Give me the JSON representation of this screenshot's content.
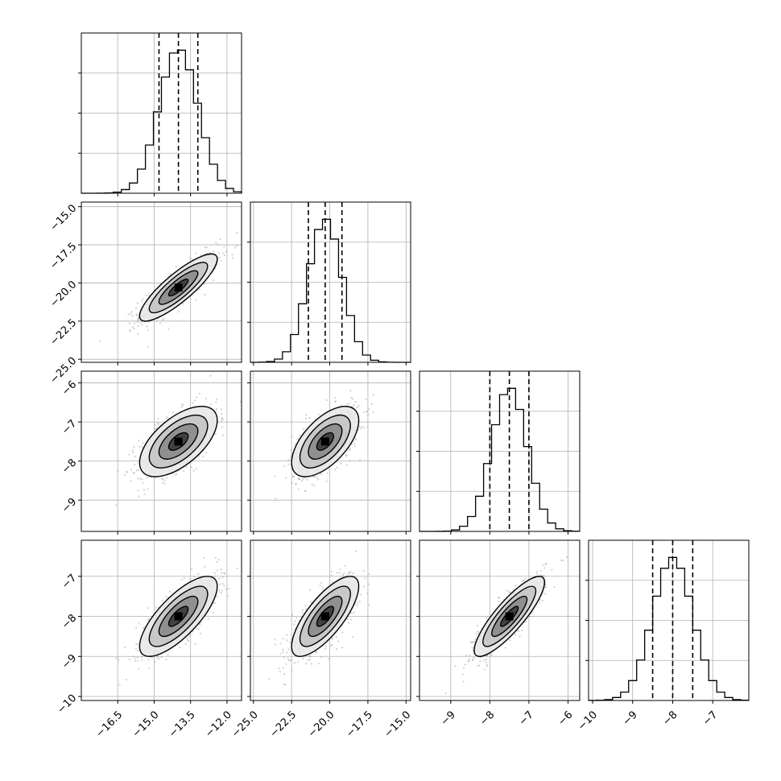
{
  "chart_data": {
    "type": "scatter",
    "subtype": "corner-plot",
    "n_params": 4,
    "title": "",
    "grid": true,
    "colors": {
      "axes": "#000000",
      "grid": "#b0b0b0",
      "hist": "#000000",
      "points": "#9a9a9a",
      "background": "#ffffff"
    },
    "params": [
      {
        "mean": -14.0,
        "sd": 0.8,
        "q16": -14.8,
        "q50": -14.0,
        "q84": -13.2,
        "range": [
          -18.0,
          -11.4
        ],
        "ticks": [
          -16.5,
          -15.0,
          -13.5,
          -12.0
        ],
        "tick_labels": [
          "−16.5",
          "−15.0",
          "−13.5",
          "−12.0"
        ]
      },
      {
        "mean": -20.3,
        "sd": 1.1,
        "q16": -21.4,
        "q50": -20.3,
        "q84": -19.2,
        "range": [
          -25.2,
          -14.7
        ],
        "ticks": [
          -25.0,
          -22.5,
          -20.0,
          -17.5,
          -15.0
        ],
        "tick_labels": [
          "−25.0",
          "−22.5",
          "−20.0",
          "−17.5",
          "−15.0"
        ]
      },
      {
        "mean": -7.5,
        "sd": 0.45,
        "q16": -8.0,
        "q50": -7.5,
        "q84": -7.0,
        "range": [
          -9.8,
          -5.7
        ],
        "ticks": [
          -9,
          -8,
          -7,
          -6
        ],
        "tick_labels": [
          "−9",
          "−8",
          "−7",
          "−6"
        ]
      },
      {
        "mean": -8.0,
        "sd": 0.5,
        "q16": -8.5,
        "q50": -8.0,
        "q84": -7.5,
        "range": [
          -10.1,
          -6.1
        ],
        "ticks": [
          -10,
          -9,
          -8,
          -7
        ],
        "tick_labels": [
          "−10",
          "−9",
          "−8",
          "−7"
        ]
      }
    ],
    "correlations": [
      [
        1.0,
        0.85,
        0.6,
        0.75
      ],
      [
        0.85,
        1.0,
        0.6,
        0.75
      ],
      [
        0.6,
        0.6,
        1.0,
        0.85
      ],
      [
        0.75,
        0.75,
        0.85,
        1.0
      ]
    ],
    "hist_bins": 20,
    "contour_levels": [
      0.5,
      1.0,
      1.5,
      2.0
    ]
  }
}
